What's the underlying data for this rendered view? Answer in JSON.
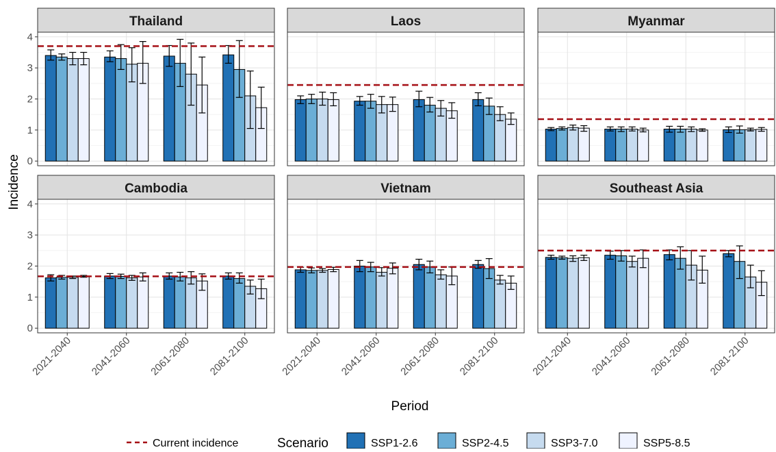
{
  "chart_data": {
    "type": "bar",
    "facet_layout": "2 rows x 3 columns",
    "xlabel": "Period",
    "ylabel": "Incidence",
    "ylim": [
      0,
      4
    ],
    "yticks": [
      0,
      1,
      2,
      3,
      4
    ],
    "categories": [
      "2021-2040",
      "2041-2060",
      "2061-2080",
      "2081-2100"
    ],
    "legend": {
      "position": "bottom",
      "title": "Scenario",
      "reference_line_label": "Current incidence",
      "scenarios": [
        "SSP1-2.6",
        "SSP2-4.5",
        "SSP3-7.0",
        "SSP5-8.5"
      ]
    },
    "colors": {
      "SSP1-2.6": "#2171b5",
      "SSP2-4.5": "#6baed6",
      "SSP3-7.0": "#c6dbef",
      "SSP5-8.5": "#eff3ff",
      "reference_line": "#a50f15",
      "strip_bg": "#d9d9d9"
    },
    "panels": [
      {
        "name": "Thailand",
        "current_incidence": 3.7,
        "series": [
          {
            "name": "SSP1-2.6",
            "values": [
              3.4,
              3.35,
              3.38,
              3.42
            ],
            "lower": [
              3.25,
              3.2,
              3.05,
              3.15
            ],
            "upper": [
              3.58,
              3.55,
              3.72,
              3.72
            ]
          },
          {
            "name": "SSP2-4.5",
            "values": [
              3.35,
              3.3,
              3.15,
              2.95
            ],
            "lower": [
              3.25,
              2.95,
              2.4,
              2.05
            ],
            "upper": [
              3.45,
              3.75,
              3.92,
              3.88
            ]
          },
          {
            "name": "SSP3-7.0",
            "values": [
              3.3,
              3.12,
              2.8,
              2.1
            ],
            "lower": [
              3.1,
              2.55,
              1.8,
              1.05
            ],
            "upper": [
              3.5,
              3.65,
              3.8,
              2.9
            ]
          },
          {
            "name": "SSP5-8.5",
            "values": [
              3.3,
              3.15,
              2.45,
              1.72
            ],
            "lower": [
              3.1,
              2.5,
              1.55,
              1.05
            ],
            "upper": [
              3.5,
              3.85,
              3.35,
              2.38
            ]
          }
        ]
      },
      {
        "name": "Laos",
        "current_incidence": 2.45,
        "series": [
          {
            "name": "SSP1-2.6",
            "values": [
              1.98,
              1.93,
              1.98,
              1.98
            ],
            "lower": [
              1.85,
              1.8,
              1.75,
              1.78
            ],
            "upper": [
              2.1,
              2.08,
              2.25,
              2.2
            ]
          },
          {
            "name": "SSP2-4.5",
            "values": [
              2.0,
              1.93,
              1.8,
              1.77
            ],
            "lower": [
              1.85,
              1.7,
              1.58,
              1.5
            ],
            "upper": [
              2.15,
              2.15,
              2.05,
              2.03
            ]
          },
          {
            "name": "SSP3-7.0",
            "values": [
              2.0,
              1.82,
              1.7,
              1.5
            ],
            "lower": [
              1.8,
              1.55,
              1.45,
              1.3
            ],
            "upper": [
              2.22,
              2.08,
              1.95,
              1.75
            ]
          },
          {
            "name": "SSP5-8.5",
            "values": [
              1.98,
              1.82,
              1.62,
              1.35
            ],
            "lower": [
              1.78,
              1.6,
              1.38,
              1.18
            ],
            "upper": [
              2.2,
              2.06,
              1.88,
              1.55
            ]
          }
        ]
      },
      {
        "name": "Myanmar",
        "current_incidence": 1.35,
        "series": [
          {
            "name": "SSP1-2.6",
            "values": [
              1.03,
              1.03,
              1.03,
              1.01
            ],
            "lower": [
              0.98,
              0.97,
              0.93,
              0.92
            ],
            "upper": [
              1.08,
              1.1,
              1.12,
              1.1
            ]
          },
          {
            "name": "SSP2-4.5",
            "values": [
              1.05,
              1.03,
              1.03,
              1.01
            ],
            "lower": [
              1.0,
              0.95,
              0.93,
              0.9
            ],
            "upper": [
              1.1,
              1.1,
              1.12,
              1.13
            ]
          },
          {
            "name": "SSP3-7.0",
            "values": [
              1.08,
              1.03,
              1.03,
              1.01
            ],
            "lower": [
              1.0,
              0.97,
              0.95,
              0.97
            ],
            "upper": [
              1.16,
              1.1,
              1.1,
              1.06
            ]
          },
          {
            "name": "SSP5-8.5",
            "values": [
              1.06,
              1.0,
              1.0,
              1.02
            ],
            "lower": [
              0.96,
              0.94,
              0.96,
              0.96
            ],
            "upper": [
              1.14,
              1.06,
              1.04,
              1.08
            ]
          }
        ]
      },
      {
        "name": "Cambodia",
        "current_incidence": 1.67,
        "series": [
          {
            "name": "SSP1-2.6",
            "values": [
              1.62,
              1.68,
              1.68,
              1.68
            ],
            "lower": [
              1.52,
              1.6,
              1.58,
              1.58
            ],
            "upper": [
              1.72,
              1.76,
              1.78,
              1.78
            ]
          },
          {
            "name": "SSP2-4.5",
            "values": [
              1.64,
              1.67,
              1.65,
              1.6
            ],
            "lower": [
              1.58,
              1.6,
              1.52,
              1.45
            ],
            "upper": [
              1.7,
              1.74,
              1.8,
              1.78
            ]
          },
          {
            "name": "SSP3-7.0",
            "values": [
              1.64,
              1.62,
              1.62,
              1.35
            ],
            "lower": [
              1.6,
              1.54,
              1.42,
              1.1
            ],
            "upper": [
              1.68,
              1.7,
              1.82,
              1.55
            ]
          },
          {
            "name": "SSP5-8.5",
            "values": [
              1.67,
              1.65,
              1.52,
              1.27
            ],
            "lower": [
              1.64,
              1.52,
              1.22,
              0.95
            ],
            "upper": [
              1.7,
              1.78,
              1.75,
              1.58
            ]
          }
        ]
      },
      {
        "name": "Vietnam",
        "current_incidence": 1.97,
        "series": [
          {
            "name": "SSP1-2.6",
            "values": [
              1.88,
              2.0,
              2.05,
              2.05
            ],
            "lower": [
              1.8,
              1.82,
              1.88,
              1.93
            ],
            "upper": [
              1.96,
              2.18,
              2.22,
              2.18
            ]
          },
          {
            "name": "SSP2-4.5",
            "values": [
              1.86,
              1.97,
              1.97,
              1.92
            ],
            "lower": [
              1.78,
              1.82,
              1.78,
              1.6
            ],
            "upper": [
              1.94,
              2.12,
              2.16,
              2.24
            ]
          },
          {
            "name": "SSP3-7.0",
            "values": [
              1.86,
              1.8,
              1.72,
              1.55
            ],
            "lower": [
              1.8,
              1.68,
              1.58,
              1.42
            ],
            "upper": [
              1.92,
              1.95,
              1.88,
              1.7
            ]
          },
          {
            "name": "SSP5-8.5",
            "values": [
              1.89,
              1.93,
              1.68,
              1.45
            ],
            "lower": [
              1.82,
              1.75,
              1.4,
              1.25
            ],
            "upper": [
              1.96,
              2.1,
              1.97,
              1.68
            ]
          }
        ]
      },
      {
        "name": "Southeast Asia",
        "current_incidence": 2.5,
        "series": [
          {
            "name": "SSP1-2.6",
            "values": [
              2.28,
              2.35,
              2.37,
              2.4
            ],
            "lower": [
              2.22,
              2.22,
              2.2,
              2.3
            ],
            "upper": [
              2.35,
              2.48,
              2.52,
              2.5
            ]
          },
          {
            "name": "SSP2-4.5",
            "values": [
              2.27,
              2.33,
              2.25,
              2.15
            ],
            "lower": [
              2.22,
              2.16,
              1.9,
              1.6
            ],
            "upper": [
              2.32,
              2.5,
              2.62,
              2.65
            ]
          },
          {
            "name": "SSP3-7.0",
            "values": [
              2.25,
              2.15,
              2.03,
              1.65
            ],
            "lower": [
              2.15,
              1.97,
              1.55,
              1.3
            ],
            "upper": [
              2.33,
              2.32,
              2.5,
              2.03
            ]
          },
          {
            "name": "SSP5-8.5",
            "values": [
              2.27,
              2.25,
              1.87,
              1.48
            ],
            "lower": [
              2.18,
              1.95,
              1.45,
              1.05
            ],
            "upper": [
              2.35,
              2.52,
              2.32,
              1.85
            ]
          }
        ]
      }
    ]
  }
}
